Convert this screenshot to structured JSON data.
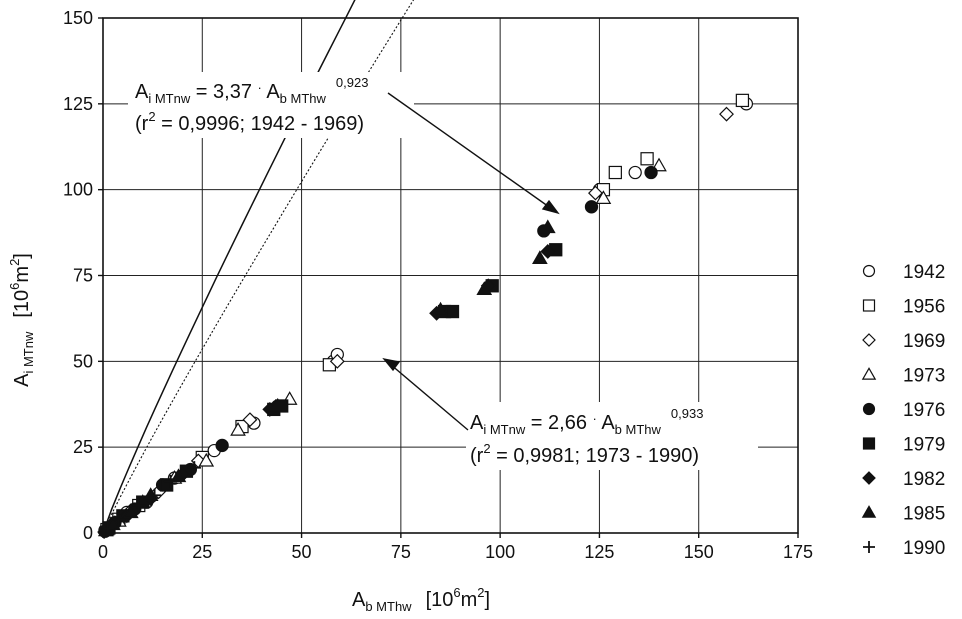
{
  "chart_data": {
    "type": "scatter",
    "xlim": [
      0,
      175
    ],
    "ylim": [
      0,
      150
    ],
    "xticks": [
      "0",
      "25",
      "50",
      "75",
      "100",
      "125",
      "150",
      "175"
    ],
    "yticks": [
      "0",
      "25",
      "50",
      "75",
      "100",
      "125",
      "150"
    ],
    "grid": true,
    "legend_position": "right",
    "xlabel": {
      "base": "A",
      "sub": "b MThw",
      "unit": "[10",
      "sup": "6",
      "unit_end": "m",
      "sup2": "2",
      "close": "]"
    },
    "ylabel": {
      "base": "A",
      "sub": "i MTnw",
      "unit": "[10",
      "sup": "6",
      "unit_end": "m",
      "sup2": "2",
      "close": "]"
    },
    "fits": [
      {
        "coef": 3.37,
        "exp": 0.923,
        "style": "solid",
        "label": {
          "lhs_base": "A",
          "lhs_sub": "i MTnw",
          "eq": " = 3,37 ",
          "dot": "·",
          "rhs_base": " A",
          "rhs_sub": "b MThw",
          "exp_text": "0,923",
          "line2_open": "(r",
          "r_sup": "2",
          "line2_rest": " = 0,9996;  1942 - 1969)"
        }
      },
      {
        "coef": 2.66,
        "exp": 0.933,
        "style": "dotted",
        "label": {
          "lhs_base": "A",
          "lhs_sub": "i MTnw",
          "eq": " = 2,66 ",
          "dot": "·",
          "rhs_base": " A",
          "rhs_sub": "b MThw",
          "exp_text": "0,933",
          "line2_open": "(r",
          "r_sup": "2",
          "line2_rest": " = 0,9981;  1973 - 1990)"
        }
      }
    ],
    "series": [
      {
        "name": "1942",
        "marker": "circle-open",
        "points": [
          [
            0.5,
            0.8
          ],
          [
            1.5,
            1.5
          ],
          [
            3,
            3
          ],
          [
            6,
            6
          ],
          [
            11,
            9
          ],
          [
            18,
            16
          ],
          [
            28,
            24
          ],
          [
            38,
            32
          ],
          [
            58,
            50
          ],
          [
            59,
            52
          ],
          [
            125,
            100
          ],
          [
            134,
            105
          ],
          [
            162,
            125
          ]
        ]
      },
      {
        "name": "1956",
        "marker": "square-open",
        "points": [
          [
            1,
            1
          ],
          [
            4,
            4
          ],
          [
            9,
            8
          ],
          [
            16,
            14
          ],
          [
            25,
            22
          ],
          [
            35,
            31
          ],
          [
            57,
            49
          ],
          [
            126,
            100
          ],
          [
            129,
            105
          ],
          [
            137,
            109
          ],
          [
            161,
            126
          ]
        ]
      },
      {
        "name": "1969",
        "marker": "diamond-open",
        "points": [
          [
            0.8,
            1
          ],
          [
            3,
            3
          ],
          [
            7,
            6.5
          ],
          [
            14,
            12
          ],
          [
            24,
            21
          ],
          [
            37,
            33
          ],
          [
            59,
            50
          ],
          [
            124,
            99
          ],
          [
            157,
            122
          ]
        ]
      },
      {
        "name": "1973",
        "marker": "triangle-open",
        "points": [
          [
            1,
            1
          ],
          [
            4,
            3.5
          ],
          [
            10,
            9
          ],
          [
            18,
            16
          ],
          [
            26,
            21
          ],
          [
            34,
            30
          ],
          [
            47,
            39
          ],
          [
            126,
            97.5
          ],
          [
            140,
            107
          ]
        ]
      },
      {
        "name": "1976",
        "marker": "circle-filled",
        "points": [
          [
            0.5,
            0.5
          ],
          [
            3,
            3
          ],
          [
            8,
            7
          ],
          [
            15,
            14
          ],
          [
            22,
            18.5
          ],
          [
            30,
            25.5
          ],
          [
            44,
            37
          ],
          [
            111,
            88
          ],
          [
            123,
            95
          ],
          [
            138,
            105
          ]
        ]
      },
      {
        "name": "1979",
        "marker": "square-filled",
        "points": [
          [
            1.5,
            1.5
          ],
          [
            5,
            5
          ],
          [
            10,
            9
          ],
          [
            16,
            14
          ],
          [
            21,
            18
          ],
          [
            43,
            36
          ],
          [
            45,
            37
          ],
          [
            86,
            64.5
          ],
          [
            88,
            64.5
          ],
          [
            98,
            72
          ],
          [
            114,
            82.5
          ]
        ]
      },
      {
        "name": "1982",
        "marker": "diamond-filled",
        "points": [
          [
            2,
            2
          ],
          [
            6,
            5
          ],
          [
            12,
            10
          ],
          [
            20,
            17
          ],
          [
            42,
            36
          ],
          [
            84,
            64
          ],
          [
            97,
            72
          ],
          [
            112,
            82
          ]
        ]
      },
      {
        "name": "1985",
        "marker": "triangle-filled",
        "points": [
          [
            0.7,
            0.7
          ],
          [
            2.5,
            2.5
          ],
          [
            7,
            6
          ],
          [
            12,
            11
          ],
          [
            19,
            16.5
          ],
          [
            44,
            37
          ],
          [
            85,
            65
          ],
          [
            96,
            71
          ],
          [
            110,
            80
          ],
          [
            112,
            89
          ]
        ]
      },
      {
        "name": "1990",
        "marker": "plus",
        "points": [
          [
            0.3,
            0.3
          ],
          [
            1.2,
            1.2
          ],
          [
            4,
            4
          ],
          [
            9,
            8
          ],
          [
            13,
            11
          ],
          [
            17,
            15
          ],
          [
            23,
            19
          ]
        ]
      }
    ]
  }
}
